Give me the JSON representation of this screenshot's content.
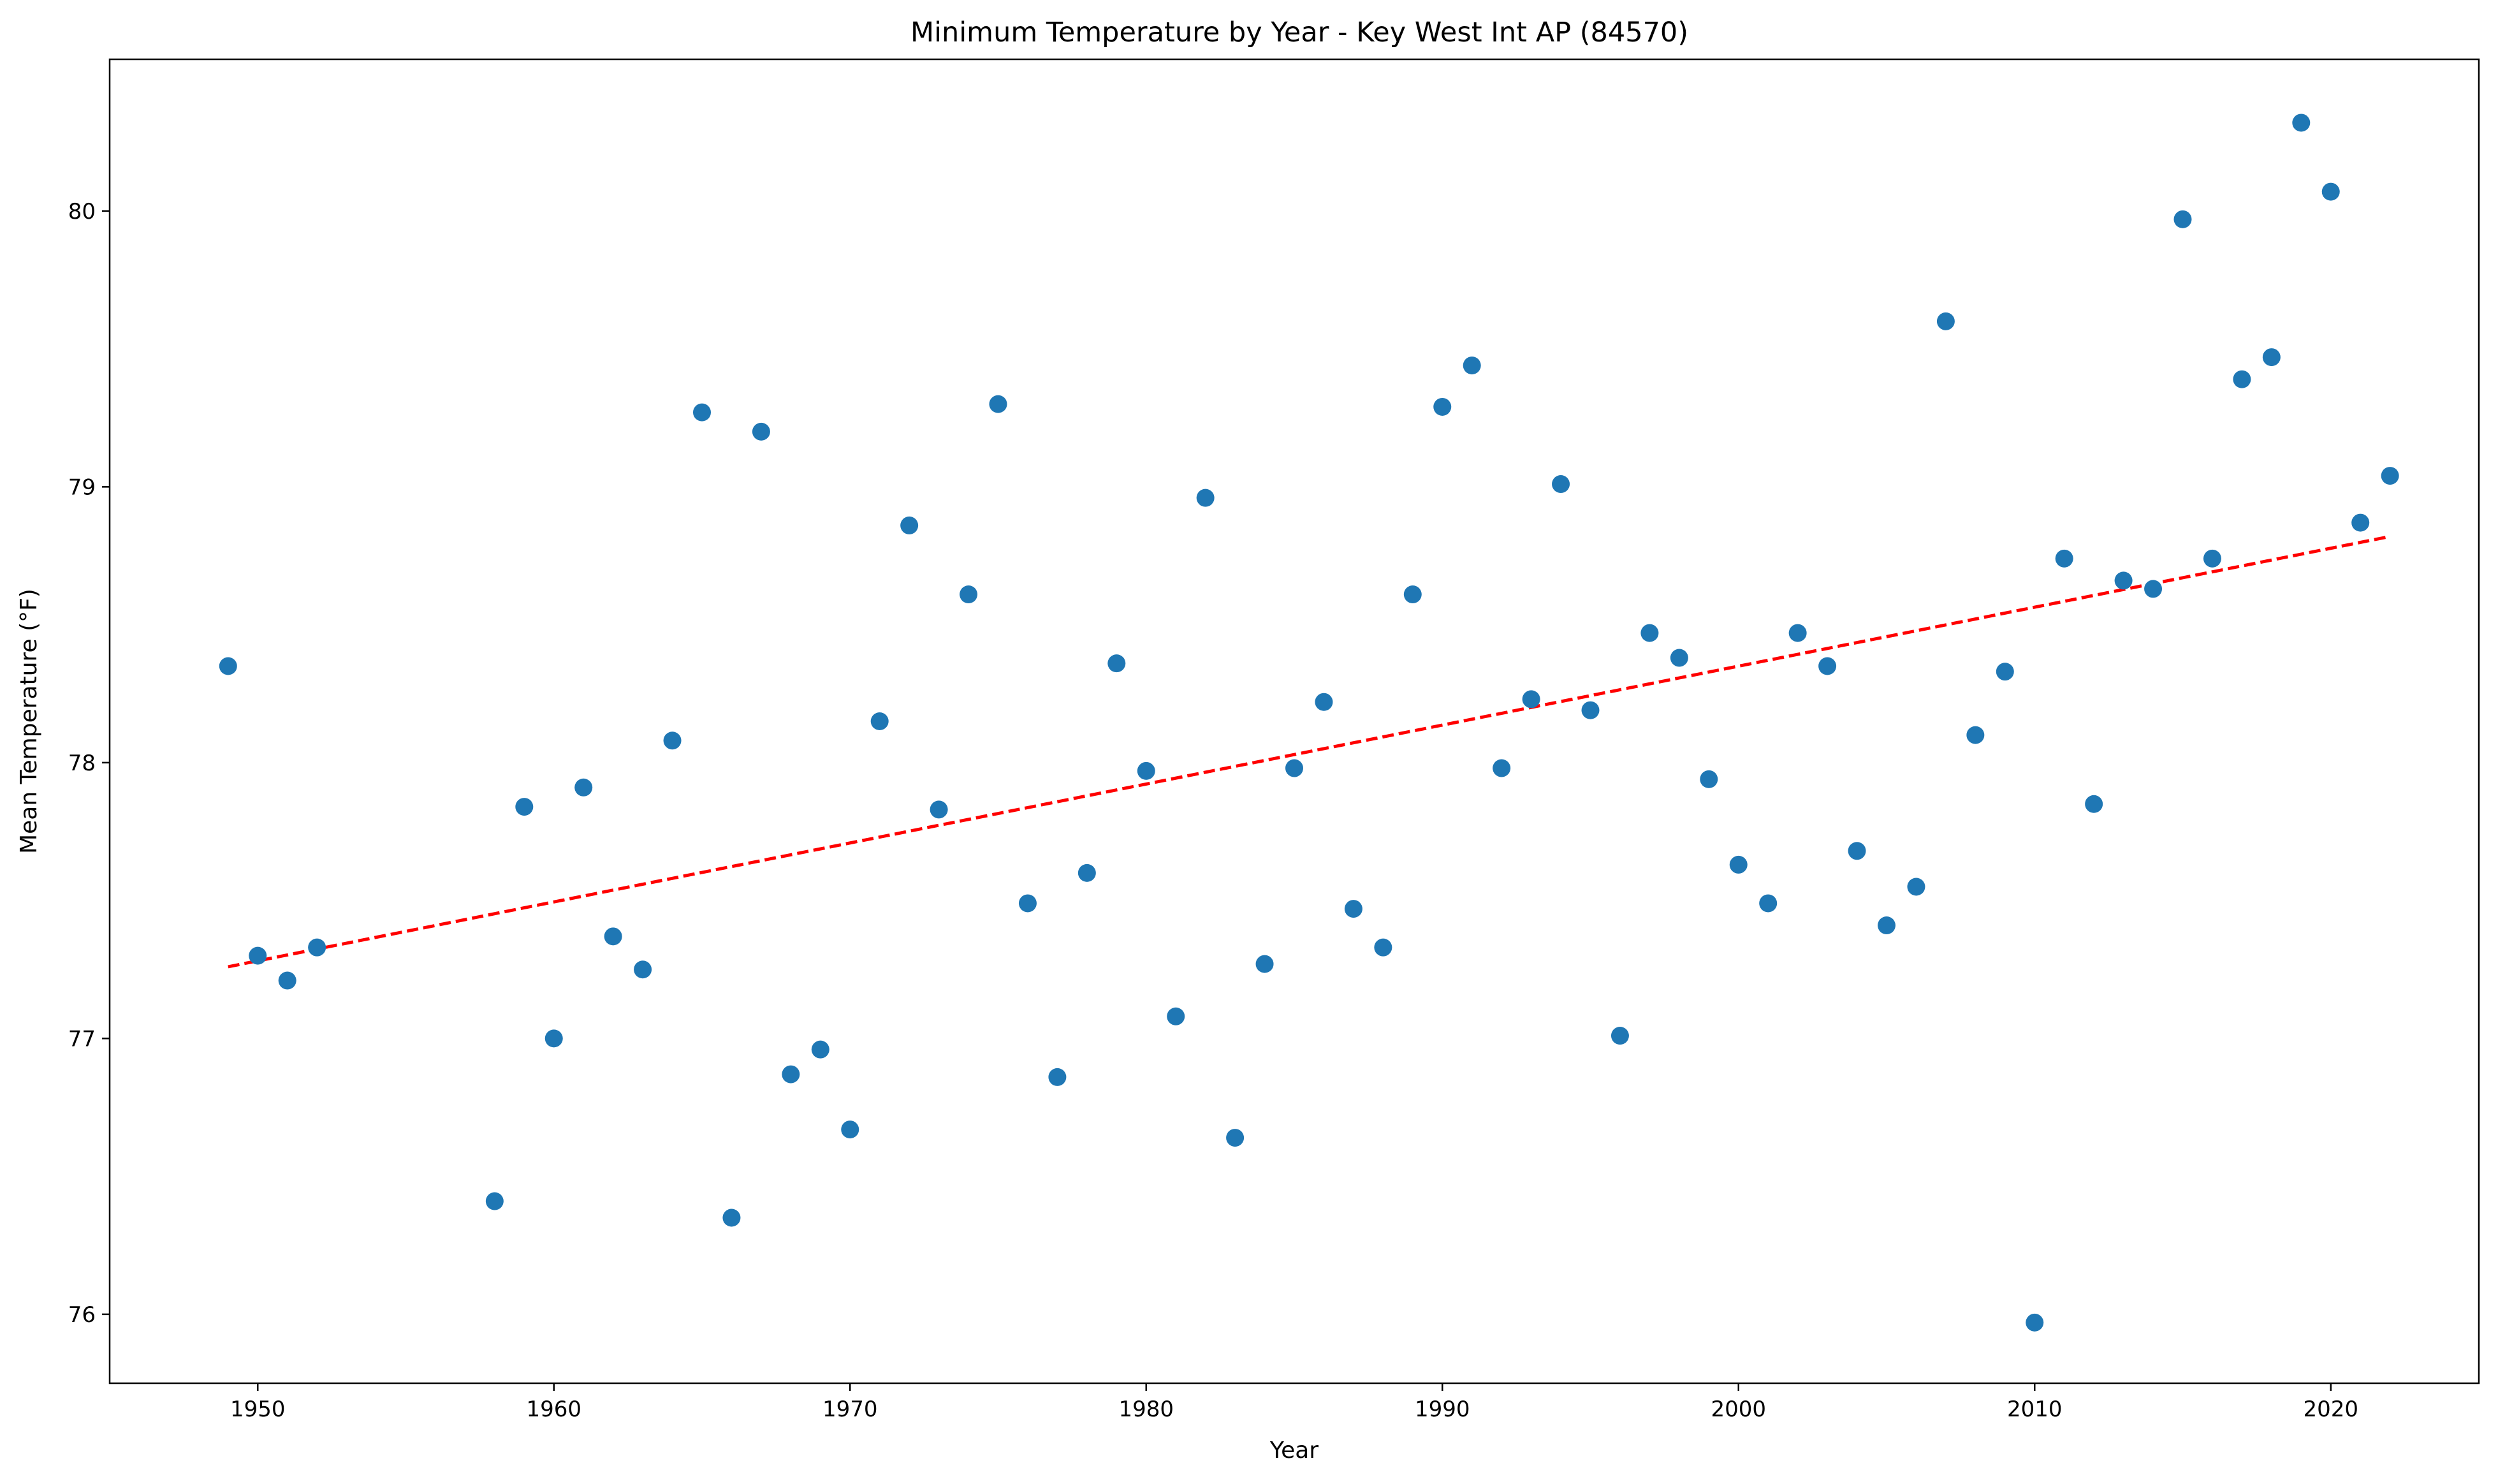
{
  "chart_data": {
    "type": "scatter",
    "title": "Minimum Temperature by Year - Key West Int AP (84570)",
    "xlabel": "Year",
    "ylabel": "Mean Temperature (°F)",
    "xlim": [
      1945,
      2025
    ],
    "ylim": [
      75.75,
      80.55
    ],
    "xticks": [
      1950,
      1960,
      1970,
      1980,
      1990,
      2000,
      2010,
      2020
    ],
    "yticks": [
      76,
      77,
      78,
      79,
      80
    ],
    "grid": false,
    "legend": "none",
    "colors": {
      "points": "#1f77b4",
      "trend": "#ff0000"
    },
    "series": [
      {
        "x": [
          1949,
          1950,
          1951,
          1952,
          1958,
          1959,
          1960,
          1961,
          1962,
          1963,
          1964,
          1965,
          1966,
          1967,
          1968,
          1969,
          1970,
          1971,
          1972,
          1973,
          1974,
          1975,
          1976,
          1977,
          1978,
          1979,
          1980,
          1981,
          1982,
          1983,
          1984,
          1985,
          1986,
          1987,
          1988,
          1989,
          1990,
          1991,
          1992,
          1993,
          1994,
          1995,
          1996,
          1997,
          1998,
          1999,
          2000,
          2001,
          2002,
          2003,
          2004,
          2005,
          2006,
          2007,
          2008,
          2009,
          2010,
          2011,
          2012,
          2013,
          2014,
          2015,
          2016,
          2017,
          2018,
          2019,
          2020,
          2021,
          2022
        ],
        "y": [
          78.35,
          77.3,
          77.21,
          77.33,
          76.41,
          77.84,
          77.0,
          77.91,
          77.37,
          77.25,
          78.08,
          79.27,
          76.35,
          79.2,
          76.87,
          76.96,
          76.67,
          78.15,
          78.86,
          77.83,
          78.61,
          79.3,
          77.49,
          76.86,
          77.6,
          78.36,
          77.97,
          77.08,
          78.96,
          76.64,
          77.27,
          77.98,
          78.22,
          77.47,
          77.33,
          78.61,
          79.29,
          79.44,
          77.98,
          78.23,
          79.01,
          78.19,
          77.01,
          78.47,
          78.38,
          77.94,
          77.63,
          77.49,
          78.47,
          78.35,
          77.68,
          77.41,
          77.55,
          79.6,
          78.1,
          78.33,
          75.97,
          78.74,
          77.85,
          78.66,
          78.63,
          79.97,
          78.74,
          79.39,
          79.47,
          80.32,
          80.07,
          78.87,
          79.04
        ]
      }
    ],
    "trendline": {
      "style": "dashed",
      "x": [
        1949,
        2022
      ],
      "y": [
        77.26,
        78.82
      ]
    }
  }
}
